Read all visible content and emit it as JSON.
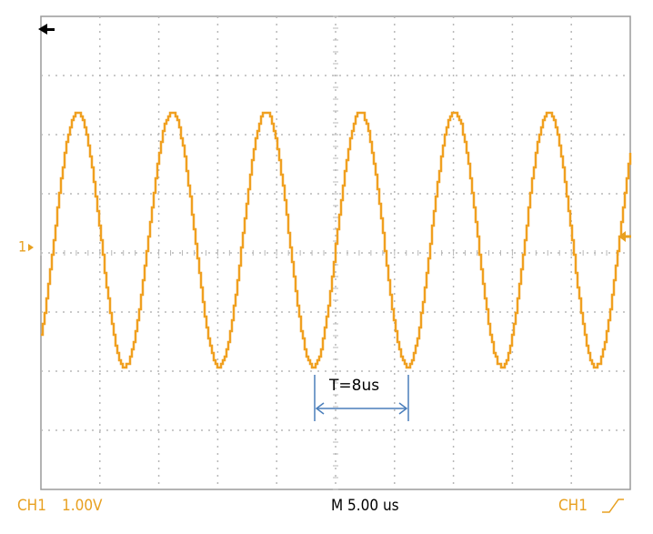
{
  "screen": {
    "channel_marker": "1",
    "annotation": "T=8us"
  },
  "status_bar": {
    "channel": "CH1",
    "scale": "1.00V",
    "timebase": "M 5.00 us",
    "trigger_channel": "CH1"
  }
}
